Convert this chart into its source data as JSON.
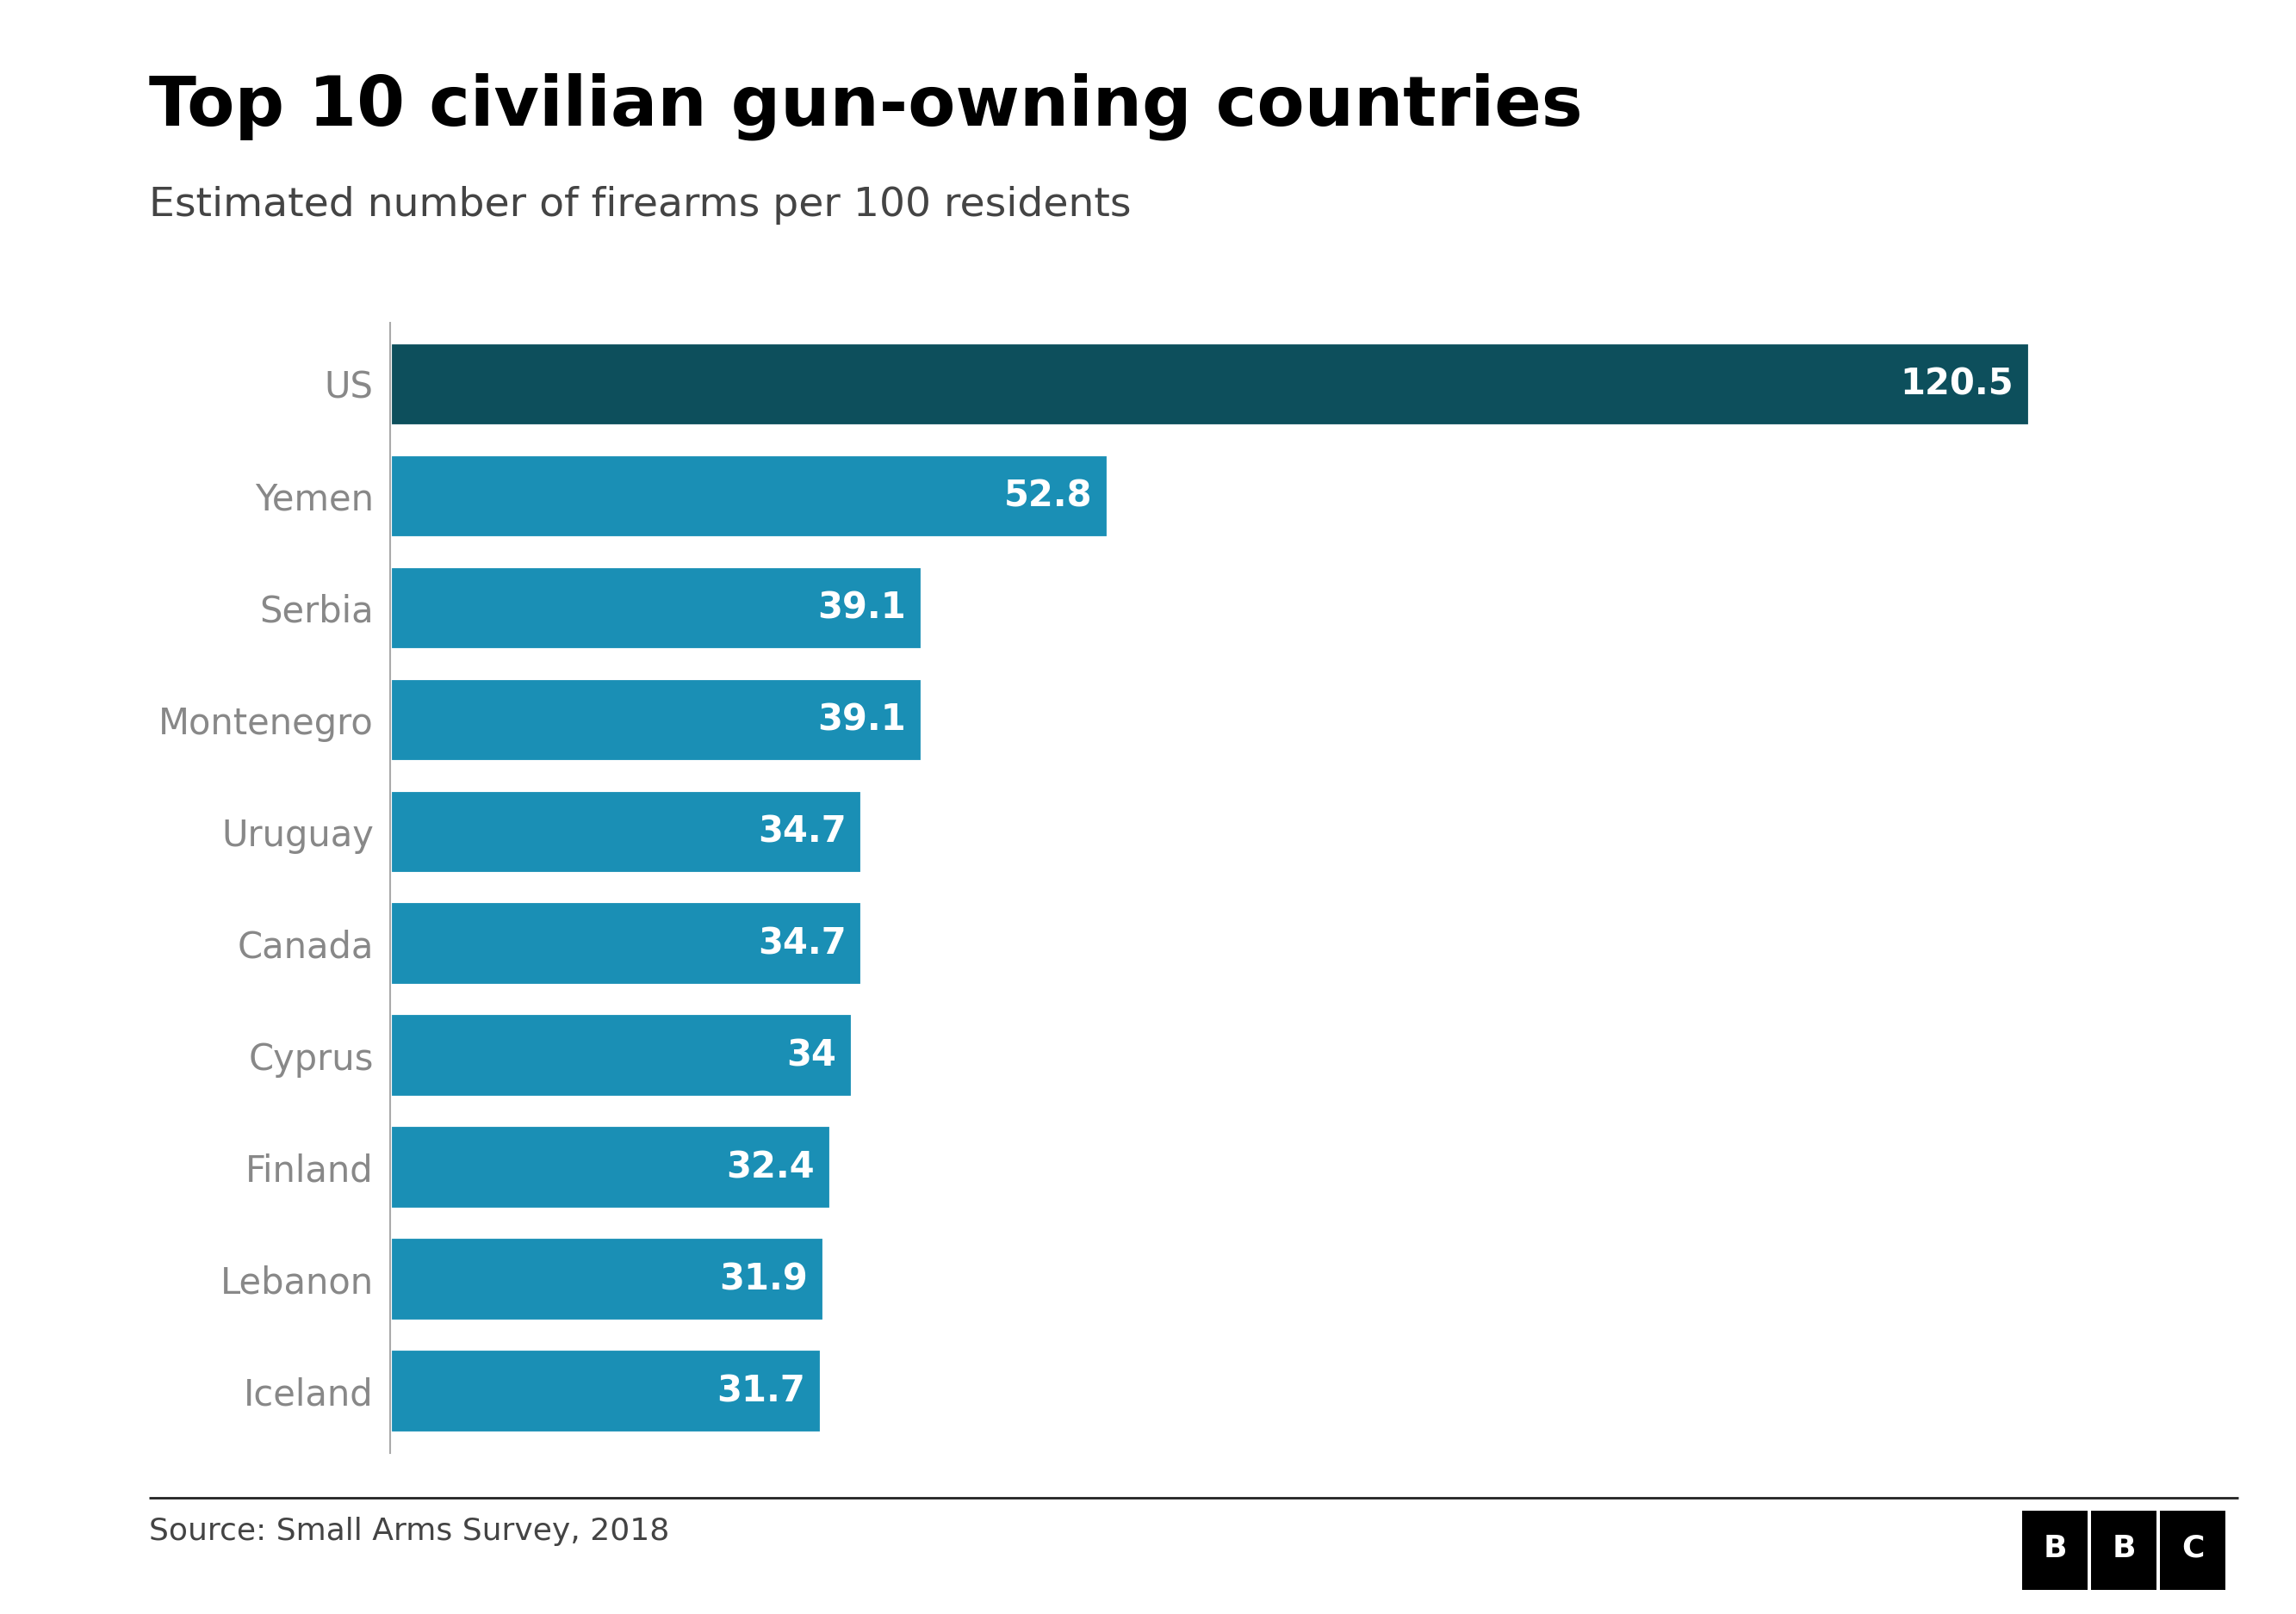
{
  "title": "Top 10 civilian gun-owning countries",
  "subtitle": "Estimated number of firearms per 100 residents",
  "source": "Source: Small Arms Survey, 2018",
  "categories": [
    "US",
    "Yemen",
    "Serbia",
    "Montenegro",
    "Uruguay",
    "Canada",
    "Cyprus",
    "Finland",
    "Lebanon",
    "Iceland"
  ],
  "values": [
    120.5,
    52.8,
    39.1,
    39.1,
    34.7,
    34.7,
    34.0,
    32.4,
    31.9,
    31.7
  ],
  "labels": [
    "120.5",
    "52.8",
    "39.1",
    "39.1",
    "34.7",
    "34.7",
    "34",
    "32.4",
    "31.9",
    "31.7"
  ],
  "bar_color_us": "#0d4f5c",
  "bar_color_others": "#1a8fb5",
  "background_color": "#ffffff",
  "title_color": "#000000",
  "subtitle_color": "#444444",
  "label_color_y": "#888888",
  "label_color_value": "#ffffff",
  "source_color": "#444444",
  "title_fontsize": 58,
  "subtitle_fontsize": 34,
  "label_fontsize": 30,
  "value_fontsize": 30,
  "source_fontsize": 26,
  "bar_height": 0.75,
  "xlim": [
    0,
    135
  ],
  "bbc_box_color": "#000000",
  "bbc_text_color": "#ffffff"
}
